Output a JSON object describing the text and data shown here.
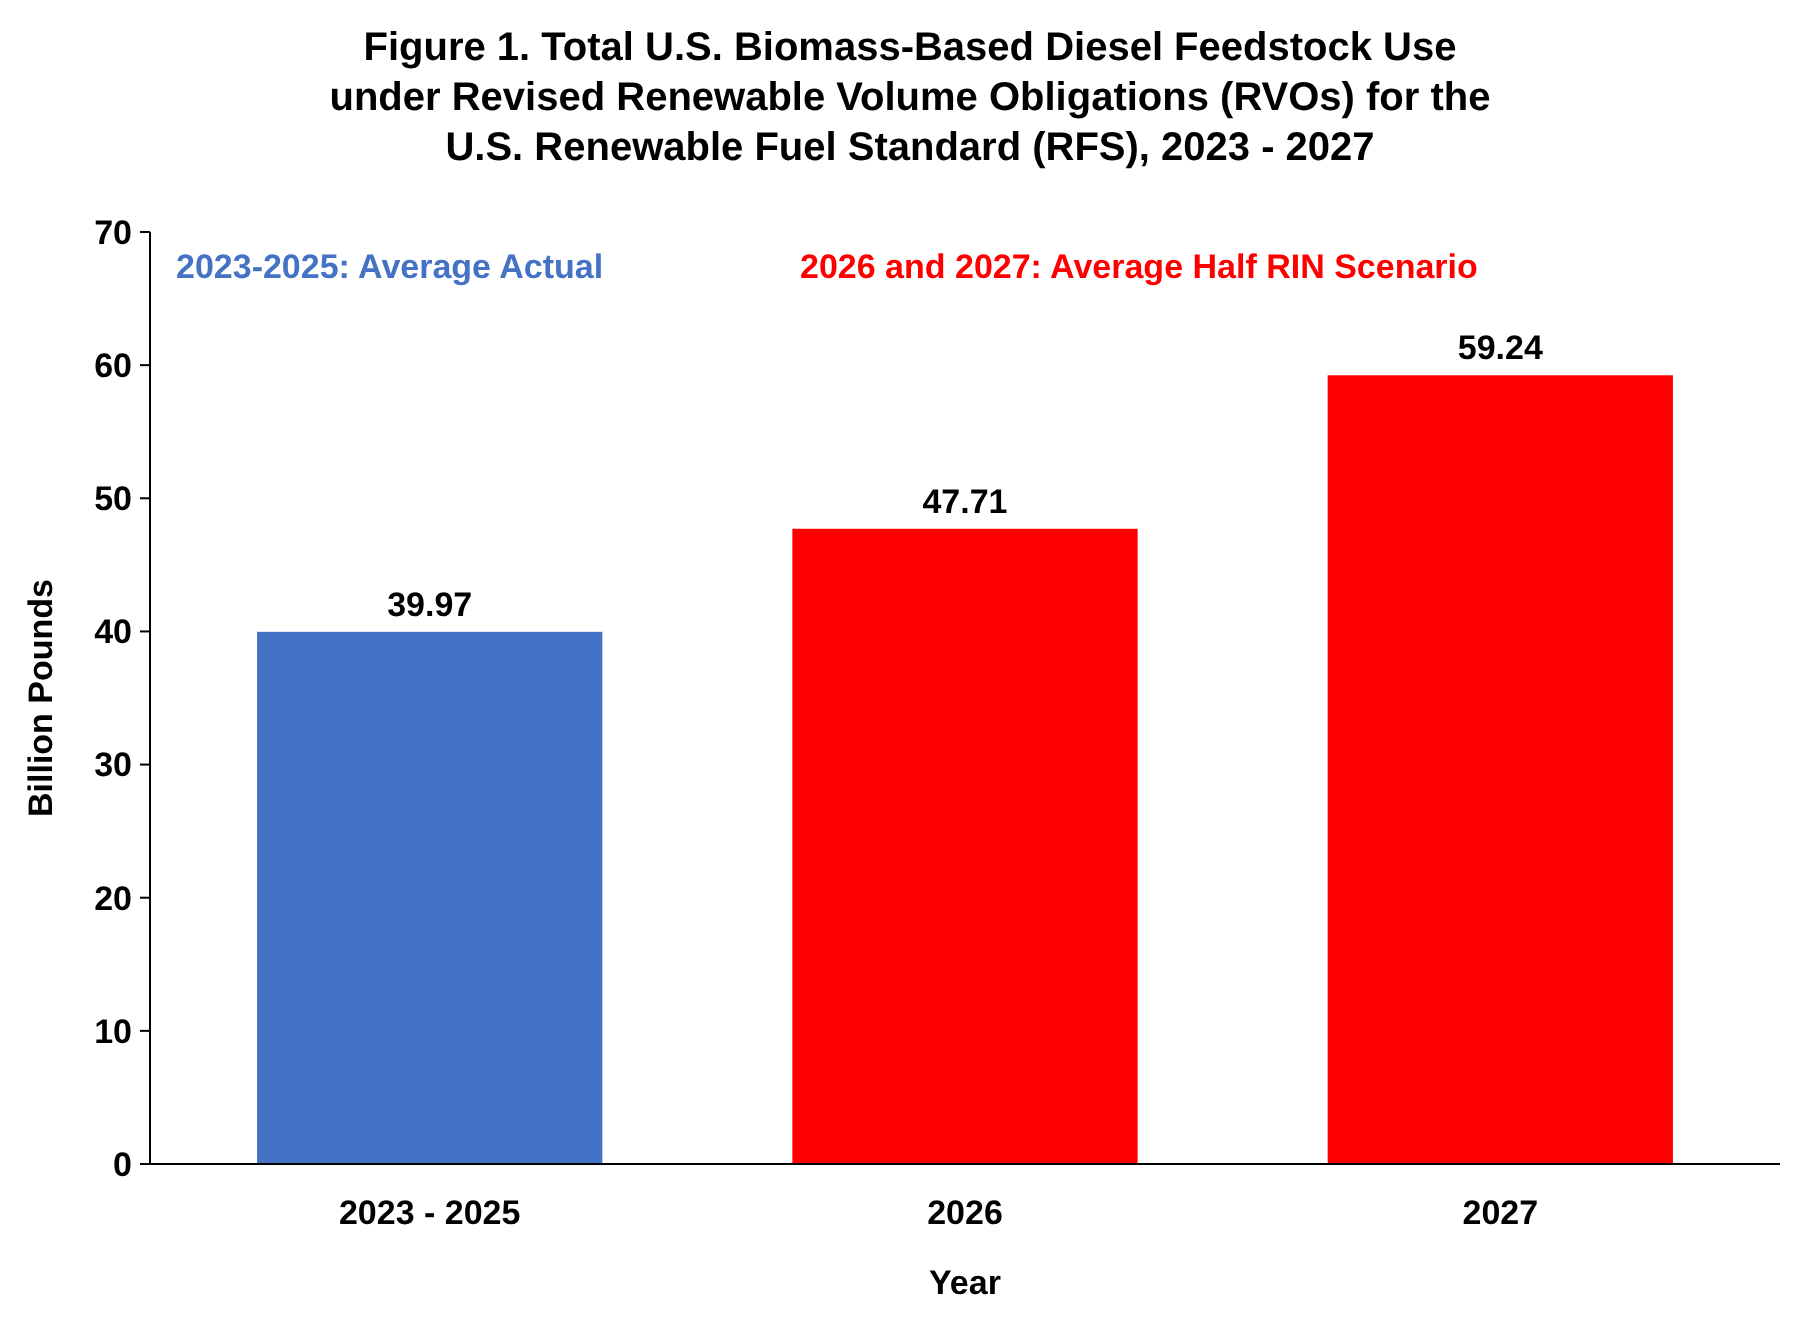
{
  "chart_data": {
    "type": "bar",
    "title": "Figure 1. Total U.S. Biomass-Based Diesel Feedstock Use\nunder Revised Renewable Volume Obligations (RVOs) for the\nU.S. Renewable Fuel Standard (RFS), 2023 - 2027",
    "xlabel": "Year",
    "ylabel": "Billion Pounds",
    "categories": [
      "2023 - 2025",
      "2026",
      "2027"
    ],
    "series": [
      {
        "name": "2023-2025: Average Actual",
        "color": "#4472c4",
        "values": [
          39.97,
          null,
          null
        ]
      },
      {
        "name": "2026 and 2027: Average Half RIN Scenario",
        "color": "#ff0000",
        "values": [
          null,
          47.71,
          59.24
        ]
      }
    ],
    "ylim": [
      0,
      70
    ],
    "yticks": [
      0,
      10,
      20,
      30,
      40,
      50,
      60,
      70
    ],
    "grid": false,
    "legend": "top",
    "data_labels": true
  }
}
